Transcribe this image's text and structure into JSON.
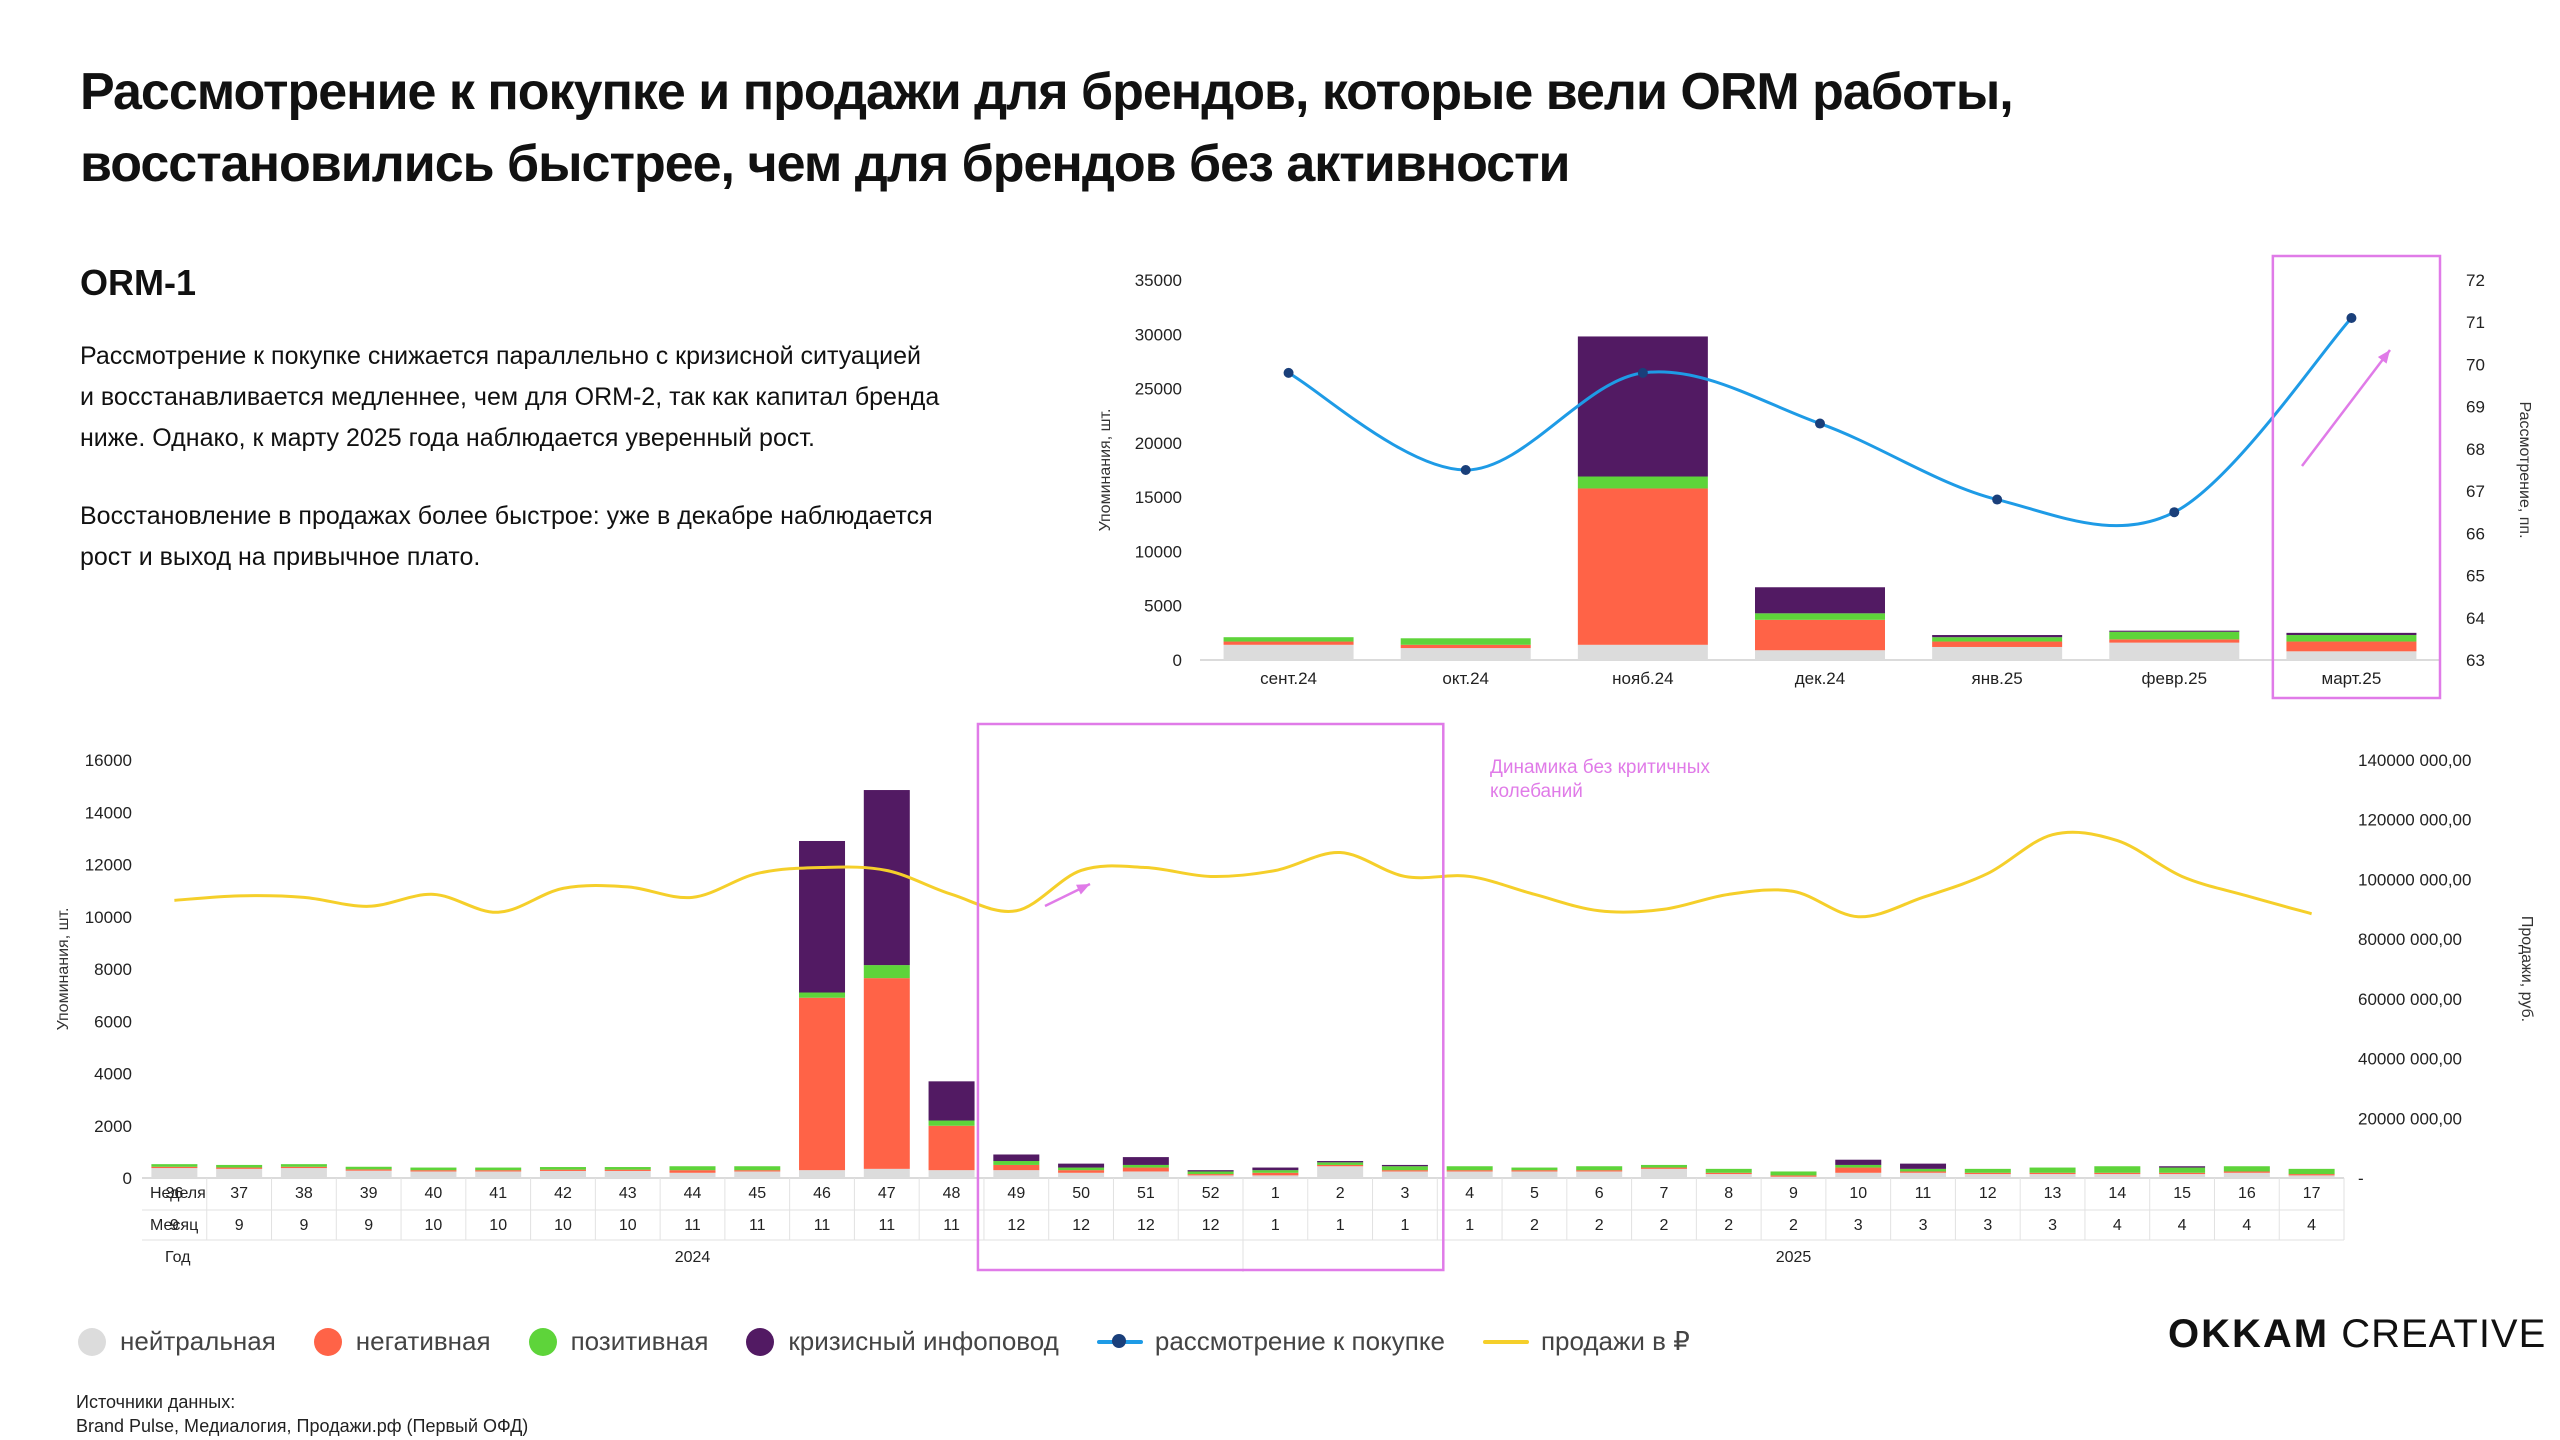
{
  "title_line1": "Рассмотрение к покупке и продажи для брендов, которые вели ORM работы,",
  "title_line2": "восстановились быстрее, чем для брендов без активности",
  "subtitle": "ORM-1",
  "paragraph1": [
    "Рассмотрение к покупке снижается параллельно с кризисной ситуацией",
    "и восстанавливается медленнее, чем для ORM-2, так как капитал бренда",
    "ниже. Однако, к марту 2025 года наблюдается уверенный рост."
  ],
  "paragraph2": [
    "Восстановление в продажах более быстрое: уже в декабре наблюдается",
    "рост и выход на привычное плато."
  ],
  "colors": {
    "neutral": "#dcdcdc",
    "negative": "#ff6347",
    "positive": "#5ed43a",
    "crisis": "#521a63",
    "consider": "#1e9be6",
    "sales": "#f5cf2a",
    "highlight": "#e07be8"
  },
  "legend": [
    {
      "label": "нейтральная",
      "type": "dot",
      "color": "#dcdcdc"
    },
    {
      "label": "негативная",
      "type": "dot",
      "color": "#ff6347"
    },
    {
      "label": "позитивная",
      "type": "dot",
      "color": "#5ed43a"
    },
    {
      "label": "кризисный инфоповод",
      "type": "dot",
      "color": "#521a63"
    },
    {
      "label": "рассмотрение к покупке",
      "type": "line",
      "color": "#1e9be6",
      "marker": "#1a3f7a"
    },
    {
      "label": "продажи в ₽",
      "type": "line",
      "color": "#f5cf2a"
    }
  ],
  "logo_bold": "OKKAM",
  "logo_light": "CREATIVE",
  "sources_title": "Источники данных:",
  "sources_text": "Brand Pulse,  Медиалогия, Продажи.рф (Первый ОФД)",
  "chart_data": [
    {
      "type": "bar",
      "stacked": true,
      "categories": [
        "сент.24",
        "окт.24",
        "нояб.24",
        "дек.24",
        "янв.25",
        "февр.25",
        "март.25"
      ],
      "series": [
        {
          "name": "нейтральная",
          "values": [
            1400,
            1100,
            1400,
            900,
            1200,
            1600,
            800
          ]
        },
        {
          "name": "негативная",
          "values": [
            300,
            300,
            14400,
            2800,
            500,
            300,
            900
          ]
        },
        {
          "name": "позитивная",
          "values": [
            400,
            600,
            1100,
            600,
            400,
            700,
            600
          ]
        },
        {
          "name": "кризисный инфоповод",
          "values": [
            0,
            0,
            12900,
            2400,
            200,
            100,
            200
          ]
        }
      ],
      "line_series": [
        {
          "name": "рассмотрение к покупке",
          "axis": "right",
          "values": [
            69.8,
            67.5,
            69.8,
            68.6,
            66.8,
            66.5,
            71.1
          ]
        }
      ],
      "ylabel": "Упоминания, шт.",
      "ylabel_right": "Рассмотрение, пп.",
      "ylim": [
        0,
        35000
      ],
      "ylim_right": [
        63,
        72
      ],
      "yticks": [
        "35000",
        "30000",
        "25000",
        "20000",
        "15000",
        "10000",
        "5000",
        "0"
      ],
      "yticks_right": [
        "72",
        "71",
        "70",
        "69",
        "68",
        "67",
        "66",
        "65",
        "64",
        "63"
      ]
    },
    {
      "type": "bar",
      "stacked": true,
      "row_labels": {
        "week": "Неделя",
        "month": "Месяц",
        "year": "Год"
      },
      "weeks": [
        "36",
        "37",
        "38",
        "39",
        "40",
        "41",
        "42",
        "43",
        "44",
        "45",
        "46",
        "47",
        "48",
        "49",
        "50",
        "51",
        "52",
        "1",
        "2",
        "3",
        "4",
        "5",
        "6",
        "7",
        "8",
        "9",
        "10",
        "11",
        "12",
        "13",
        "14",
        "15",
        "16",
        "17"
      ],
      "months": [
        "9",
        "9",
        "9",
        "9",
        "10",
        "10",
        "10",
        "10",
        "11",
        "11",
        "11",
        "11",
        "11",
        "12",
        "12",
        "12",
        "12",
        "1",
        "1",
        "1",
        "1",
        "2",
        "2",
        "2",
        "2",
        "2",
        "3",
        "3",
        "3",
        "3",
        "4",
        "4",
        "4",
        "4"
      ],
      "years": [
        {
          "label": "2024",
          "from": 0,
          "to": 16
        },
        {
          "label": "2025",
          "from": 17,
          "to": 33
        }
      ],
      "series": [
        {
          "name": "нейтральная",
          "values": [
            380,
            350,
            380,
            280,
            250,
            250,
            270,
            270,
            200,
            250,
            300,
            350,
            300,
            300,
            200,
            250,
            100,
            100,
            450,
            250,
            250,
            250,
            250,
            350,
            150,
            50,
            200,
            200,
            150,
            150,
            150,
            150,
            200,
            100
          ]
        },
        {
          "name": "негативная",
          "values": [
            50,
            50,
            50,
            50,
            50,
            50,
            50,
            50,
            100,
            50,
            6600,
            7300,
            1700,
            200,
            100,
            150,
            50,
            100,
            50,
            50,
            50,
            50,
            50,
            50,
            50,
            50,
            200,
            50,
            50,
            50,
            50,
            50,
            50,
            50
          ]
        },
        {
          "name": "позитивная",
          "values": [
            100,
            100,
            100,
            100,
            100,
            100,
            100,
            100,
            150,
            150,
            200,
            500,
            200,
            150,
            100,
            100,
            100,
            100,
            100,
            150,
            150,
            100,
            150,
            100,
            150,
            150,
            100,
            100,
            150,
            200,
            250,
            200,
            200,
            200
          ]
        },
        {
          "name": "кризисный инфоповод",
          "values": [
            0,
            0,
            0,
            0,
            0,
            0,
            0,
            0,
            0,
            0,
            5800,
            6700,
            1500,
            250,
            150,
            300,
            50,
            100,
            50,
            50,
            0,
            0,
            0,
            0,
            0,
            0,
            200,
            200,
            0,
            0,
            0,
            50,
            0,
            0
          ]
        }
      ],
      "line_series": [
        {
          "name": "продажи в ₽",
          "axis": "right",
          "values": [
            93000000,
            94500000,
            94000000,
            91000000,
            95000000,
            89000000,
            97000000,
            97500000,
            94000000,
            102000000,
            104000000,
            103000000,
            95000000,
            89500000,
            103000000,
            104000000,
            101000000,
            103000000,
            109000000,
            101000000,
            101000000,
            95000000,
            89500000,
            90000000,
            95000000,
            96000000,
            87500000,
            94000000,
            102000000,
            115000000,
            113000000,
            101000000,
            94500000,
            88500000
          ]
        }
      ],
      "ylabel": "Упоминания, шт.",
      "ylabel_right": "Продажи, руб.",
      "ylim": [
        0,
        16000
      ],
      "ylim_right": [
        0,
        140000000
      ],
      "yticks": [
        "16000",
        "14000",
        "12000",
        "10000",
        "8000",
        "6000",
        "4000",
        "2000",
        "0"
      ],
      "yticks_right": [
        "140000 000,00",
        "120000 000,00",
        "100000 000,00",
        "80000 000,00",
        "60000 000,00",
        "40000 000,00",
        "20000 000,00",
        "-"
      ],
      "annotation": [
        "Динамика без критичных",
        "колебаний"
      ]
    }
  ]
}
